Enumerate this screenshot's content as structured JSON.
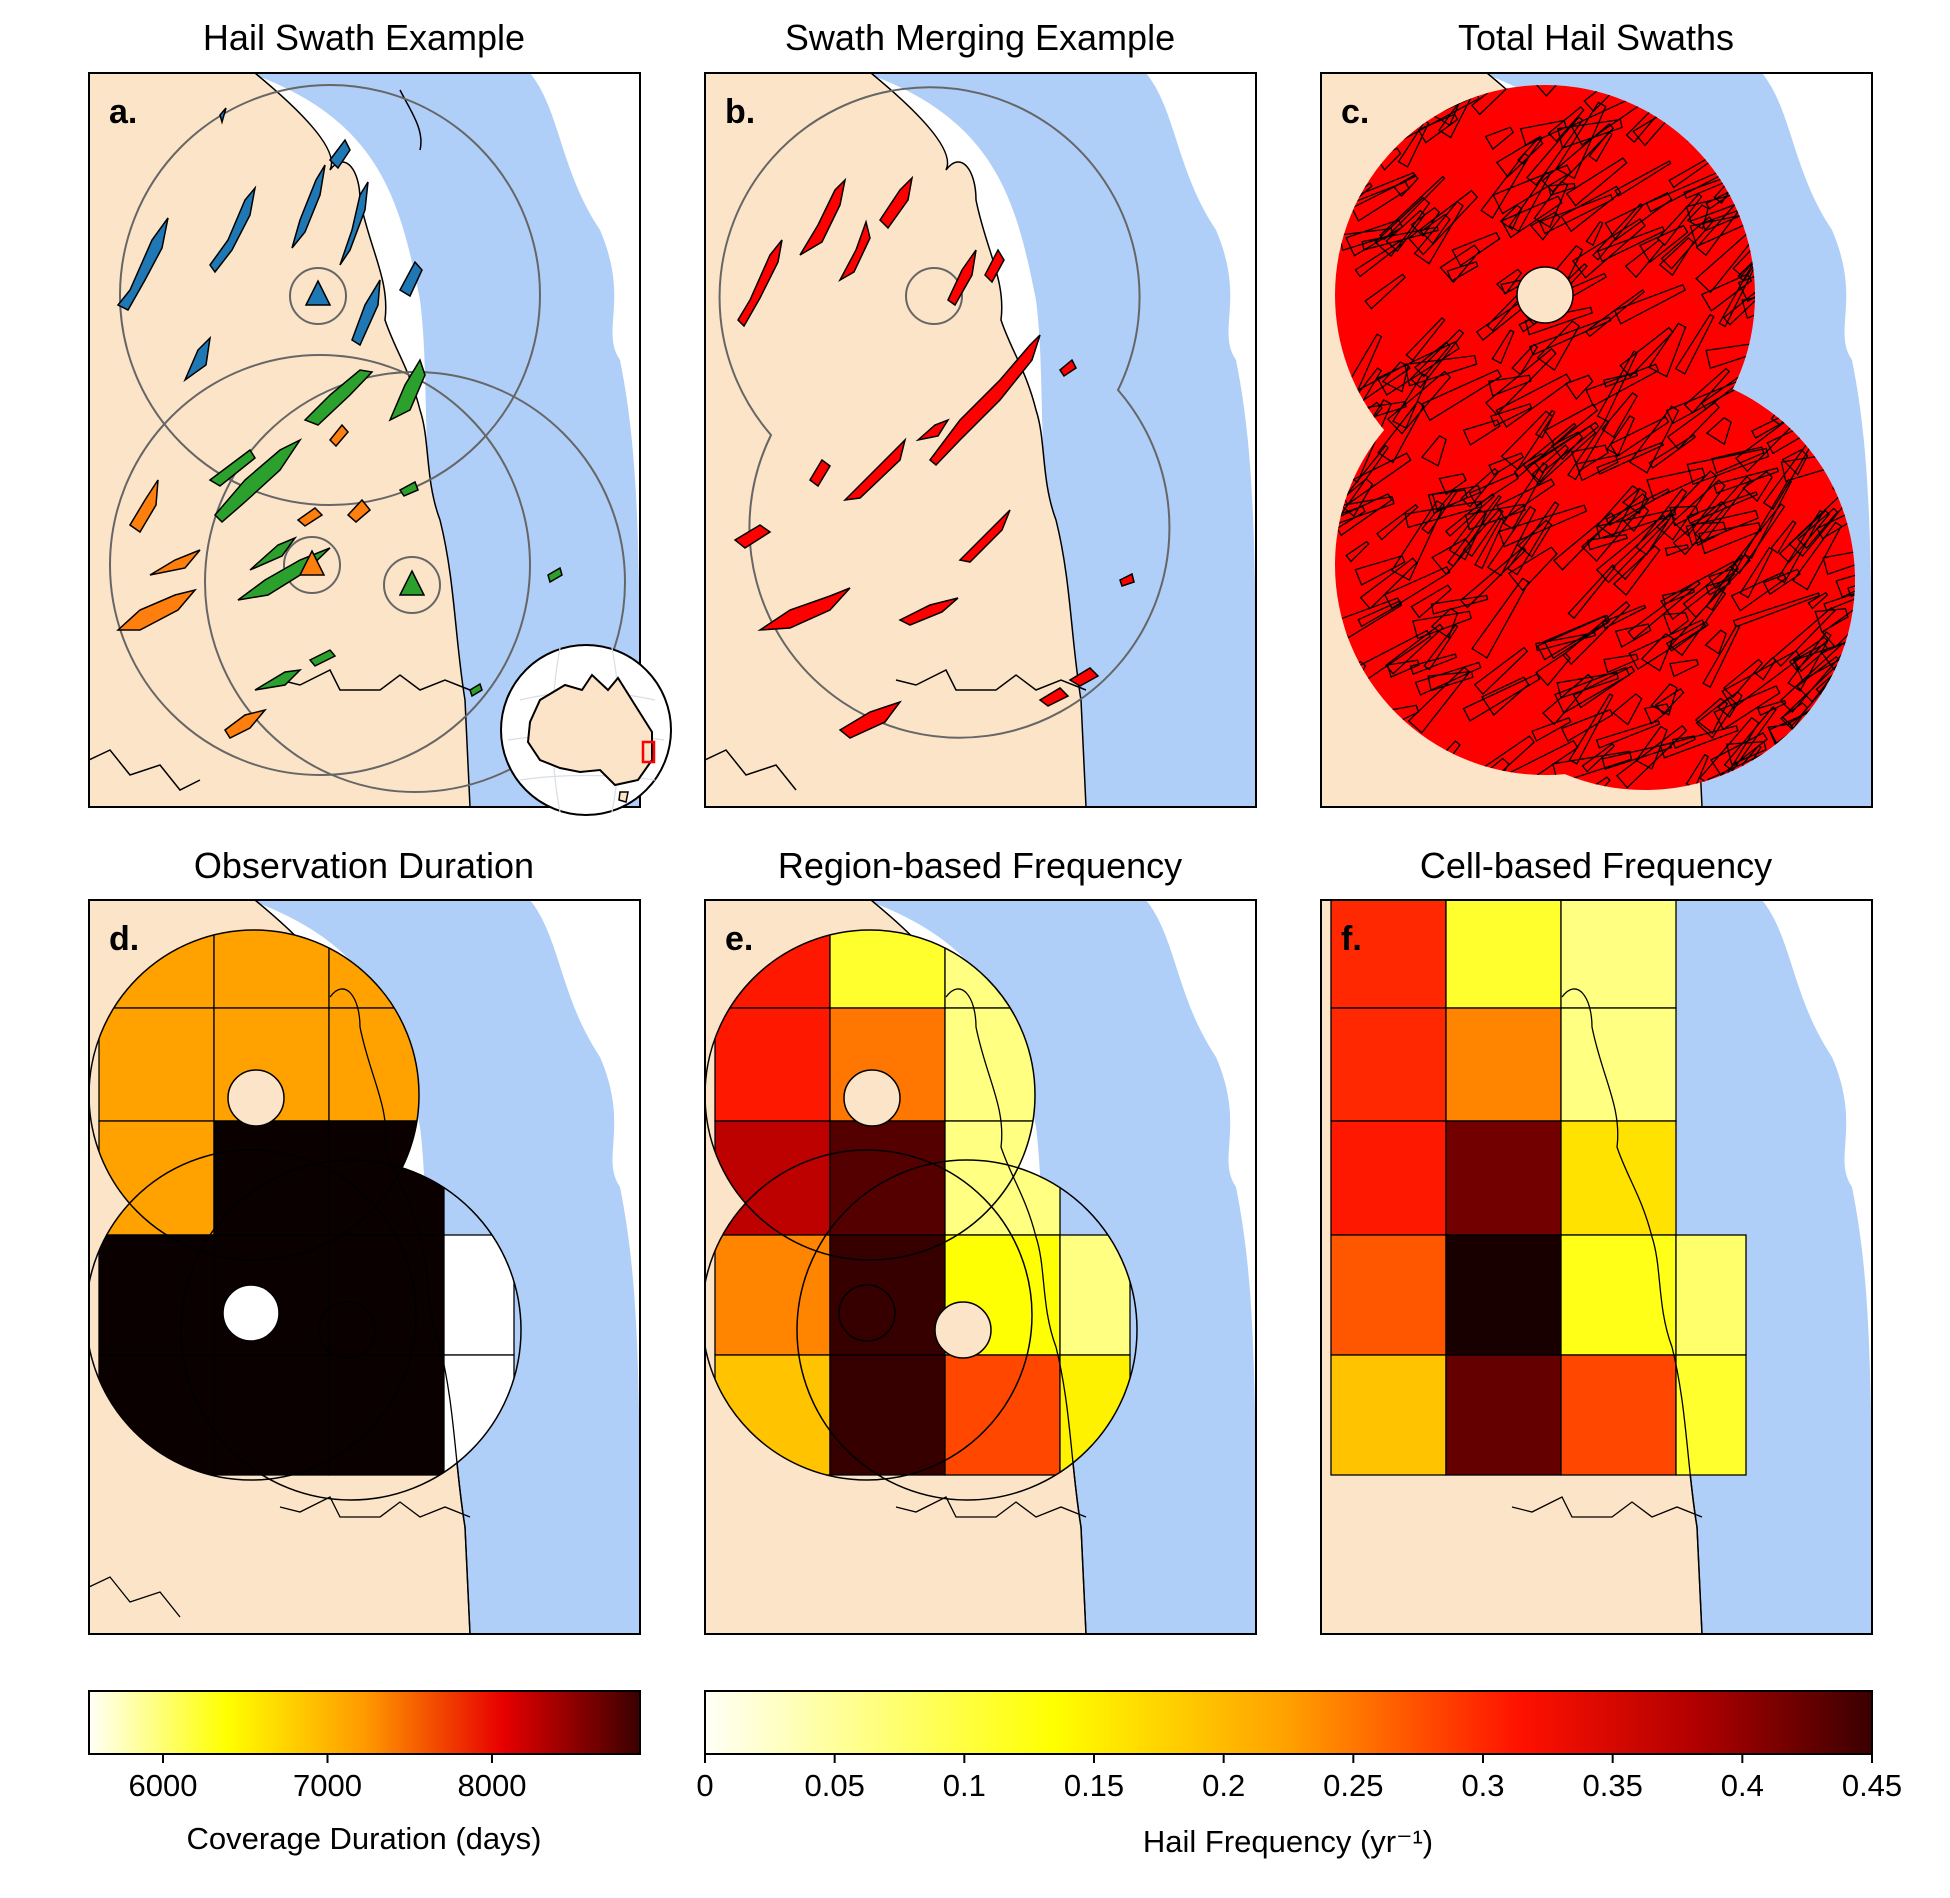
{
  "figure": {
    "panels": [
      {
        "id": "a",
        "label": "a.",
        "title": "Hail Swath Example"
      },
      {
        "id": "b",
        "label": "b.",
        "title": "Swath Merging Example"
      },
      {
        "id": "c",
        "label": "c.",
        "title": "Total Hail Swaths"
      },
      {
        "id": "d",
        "label": "d.",
        "title": "Observation Duration"
      },
      {
        "id": "e",
        "label": "e.",
        "title": "Region-based Frequency"
      },
      {
        "id": "f",
        "label": "f.",
        "title": "Cell-based Frequency"
      }
    ],
    "radar_colors": {
      "north": "#1f77b4",
      "south": "#ff7f0e",
      "east": "#2ca02c"
    },
    "colors": {
      "land": "#fce4c8",
      "ocean": "#b0cff8",
      "swath": "#ff0000",
      "edge": "#000000"
    }
  },
  "chart_data": [
    {
      "type": "heatmap",
      "panel": "d",
      "title": "Observation Duration",
      "cells": [
        {
          "row": 0,
          "col": 0,
          "value": 6900
        },
        {
          "row": 0,
          "col": 1,
          "value": 6900
        },
        {
          "row": 0,
          "col": 2,
          "value": 6900
        },
        {
          "row": 1,
          "col": 0,
          "value": 6900
        },
        {
          "row": 1,
          "col": 1,
          "value": 6900
        },
        {
          "row": 1,
          "col": 2,
          "value": 6900
        },
        {
          "row": 2,
          "col": 0,
          "value": 6900
        },
        {
          "row": 2,
          "col": 1,
          "value": 8900
        },
        {
          "row": 2,
          "col": 2,
          "value": 8900
        },
        {
          "row": 3,
          "col": 0,
          "value": 8900
        },
        {
          "row": 3,
          "col": 1,
          "value": 8900
        },
        {
          "row": 3,
          "col": 2,
          "value": 8900
        },
        {
          "row": 3,
          "col": 3,
          "value": 5550
        },
        {
          "row": 4,
          "col": 0,
          "value": 8900
        },
        {
          "row": 4,
          "col": 1,
          "value": 8900
        },
        {
          "row": 4,
          "col": 2,
          "value": 8900
        },
        {
          "row": 4,
          "col": 3,
          "value": 5550
        }
      ],
      "colorbar": {
        "label": "Coverage Duration (days)",
        "range": [
          5550,
          8900
        ],
        "ticks": [
          "6000",
          "7000",
          "8000"
        ],
        "tick_values": [
          6000,
          7000,
          8000
        ],
        "colormap": "hot_r"
      }
    },
    {
      "type": "heatmap",
      "panel": "e",
      "title": "Region-based Frequency",
      "cells": [
        {
          "row": 0,
          "col": 0,
          "value": 0.27
        },
        {
          "row": 0,
          "col": 1,
          "value": 0.1
        },
        {
          "row": 0,
          "col": 2,
          "value": 0.06
        },
        {
          "row": 1,
          "col": 0,
          "value": 0.27
        },
        {
          "row": 1,
          "col": 1,
          "value": 0.21
        },
        {
          "row": 1,
          "col": 2,
          "value": 0.06
        },
        {
          "row": 2,
          "col": 0,
          "value": 0.33
        },
        {
          "row": 2,
          "col": 1,
          "value": 0.4
        },
        {
          "row": 2,
          "col": 2,
          "value": 0.06
        },
        {
          "row": 3,
          "col": 0,
          "value": 0.2
        },
        {
          "row": 3,
          "col": 1,
          "value": 0.42
        },
        {
          "row": 3,
          "col": 2,
          "value": 0.12
        },
        {
          "row": 3,
          "col": 3,
          "value": 0.06
        },
        {
          "row": 4,
          "col": 0,
          "value": 0.16
        },
        {
          "row": 4,
          "col": 1,
          "value": 0.42
        },
        {
          "row": 4,
          "col": 2,
          "value": 0.24
        },
        {
          "row": 4,
          "col": 3,
          "value": 0.13
        }
      ],
      "colorbar": {
        "label": "Hail Frequency (yr⁻¹)",
        "range": [
          0,
          0.45
        ],
        "ticks": [
          "0",
          "0.05",
          "0.1",
          "0.15",
          "0.2",
          "0.25",
          "0.3",
          "0.35",
          "0.4",
          "0.45"
        ],
        "tick_values": [
          0,
          0.05,
          0.1,
          0.15,
          0.2,
          0.25,
          0.3,
          0.35,
          0.4,
          0.45
        ],
        "colormap": "hot_r"
      }
    },
    {
      "type": "heatmap",
      "panel": "f",
      "title": "Cell-based Frequency",
      "cells": [
        {
          "row": 0,
          "col": 0,
          "value": 0.26
        },
        {
          "row": 0,
          "col": 1,
          "value": 0.1
        },
        {
          "row": 0,
          "col": 2,
          "value": 0.06
        },
        {
          "row": 1,
          "col": 0,
          "value": 0.26
        },
        {
          "row": 1,
          "col": 1,
          "value": 0.2
        },
        {
          "row": 1,
          "col": 2,
          "value": 0.06
        },
        {
          "row": 2,
          "col": 0,
          "value": 0.27
        },
        {
          "row": 2,
          "col": 1,
          "value": 0.38
        },
        {
          "row": 2,
          "col": 2,
          "value": 0.14
        },
        {
          "row": 3,
          "col": 0,
          "value": 0.23
        },
        {
          "row": 3,
          "col": 1,
          "value": 0.44
        },
        {
          "row": 3,
          "col": 2,
          "value": 0.11
        },
        {
          "row": 3,
          "col": 3,
          "value": 0.07
        },
        {
          "row": 4,
          "col": 0,
          "value": 0.16
        },
        {
          "row": 4,
          "col": 1,
          "value": 0.39
        },
        {
          "row": 4,
          "col": 2,
          "value": 0.24
        },
        {
          "row": 4,
          "col": 3,
          "value": 0.1
        }
      ]
    }
  ]
}
